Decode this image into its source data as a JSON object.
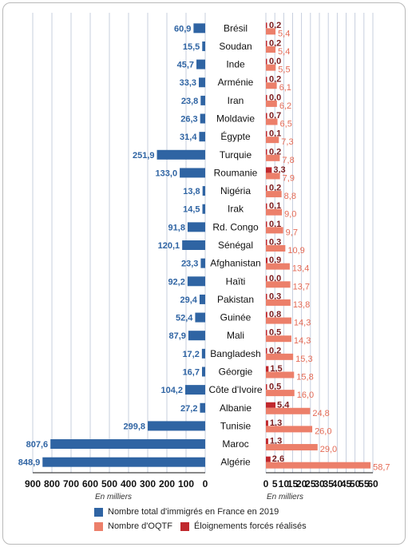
{
  "chart_data": {
    "type": "bar",
    "categories": [
      "Brésil",
      "Soudan",
      "Inde",
      "Arménie",
      "Iran",
      "Moldavie",
      "Égypte",
      "Turquie",
      "Roumanie",
      "Nigéria",
      "Irak",
      "Rd. Congo",
      "Sénégal",
      "Afghanistan",
      "Haïti",
      "Pakistan",
      "Guinée",
      "Mali",
      "Bangladesh",
      "Géorgie",
      "Côte d'Ivoire",
      "Albanie",
      "Tunisie",
      "Maroc",
      "Algérie"
    ],
    "left_panel": {
      "series": [
        {
          "name": "Nombre total d'immigrés en France en 2019",
          "color": "#2f64a3",
          "values": [
            60.9,
            15.5,
            45.7,
            33.3,
            23.8,
            26.3,
            31.4,
            251.9,
            133.0,
            13.8,
            14.5,
            91.8,
            120.1,
            23.3,
            92.2,
            29.4,
            52.4,
            87.9,
            17.2,
            16.7,
            104.2,
            27.2,
            299.8,
            807.6,
            848.9
          ],
          "labels": [
            "60,9",
            "15,5",
            "45,7",
            "33,3",
            "23,8",
            "26,3",
            "31,4",
            "251,9",
            "133,0",
            "13,8",
            "14,5",
            "91,8",
            "120,1",
            "23,3",
            "92,2",
            "29,4",
            "52,4",
            "87,9",
            "17,2",
            "16,7",
            "104,2",
            "27,2",
            "299,8",
            "807,6",
            "848,9"
          ]
        }
      ],
      "xlim": [
        0,
        900
      ],
      "ticks": [
        900,
        800,
        700,
        600,
        500,
        400,
        300,
        200,
        100,
        0
      ],
      "tick_labels": [
        "900",
        "800",
        "700",
        "600",
        "500",
        "400",
        "300",
        "200",
        "100",
        "0"
      ],
      "unit_label": "En milliers"
    },
    "right_panel": {
      "series": [
        {
          "name": "Éloignements forcés réalisés",
          "color": "#c0282d",
          "values": [
            0.2,
            0.2,
            0.0,
            0.2,
            0.0,
            0.7,
            0.1,
            0.2,
            3.3,
            0.2,
            0.1,
            0.1,
            0.3,
            0.9,
            0.0,
            0.3,
            0.8,
            0.5,
            0.2,
            1.5,
            0.5,
            5.4,
            1.3,
            1.3,
            2.6
          ],
          "labels": [
            "0,2",
            "0,2",
            "0,0",
            "0,2",
            "0,0",
            "0,7",
            "0,1",
            "0,2",
            "3,3",
            "0,2",
            "0,1",
            "0,1",
            "0,3",
            "0,9",
            "0,0",
            "0,3",
            "0,8",
            "0,5",
            "0,2",
            "1,5",
            "0,5",
            "5,4",
            "1,3",
            "1,3",
            "2,6"
          ]
        },
        {
          "name": "Nombre d'OQTF",
          "color": "#ec7f6a",
          "values": [
            5.4,
            5.4,
            5.5,
            6.1,
            6.2,
            6.5,
            7.3,
            7.8,
            7.9,
            8.8,
            9.0,
            9.7,
            10.9,
            13.4,
            13.7,
            13.8,
            14.3,
            14.3,
            15.3,
            15.8,
            16.0,
            24.8,
            26.0,
            29.0,
            58.7
          ],
          "labels": [
            "5,4",
            "5,4",
            "5,5",
            "6,1",
            "6,2",
            "6,5",
            "7,3",
            "7,8",
            "7,9",
            "8,8",
            "9,0",
            "9,7",
            "10,9",
            "13,4",
            "13,7",
            "13,8",
            "14,3",
            "14,3",
            "15,3",
            "15,8",
            "16,0",
            "24,8",
            "26,0",
            "29,0",
            "58,7"
          ]
        }
      ],
      "xlim": [
        0,
        60
      ],
      "ticks": [
        0,
        5,
        10,
        15,
        20,
        25,
        30,
        35,
        40,
        45,
        50,
        55,
        60
      ],
      "tick_labels": [
        "0",
        "5",
        "10",
        "15",
        "20",
        "25",
        "30",
        "35",
        "40",
        "45",
        "50",
        "55",
        "60"
      ],
      "unit_label": "En milliers"
    },
    "legend": [
      {
        "name": "Nombre total d'immigrés en France en 2019",
        "color": "#2f64a3"
      },
      {
        "name": "Nombre d'OQTF",
        "color": "#ec7f6a"
      },
      {
        "name": "Éloignements forcés réalisés",
        "color": "#c0282d"
      }
    ],
    "grid": true,
    "legend_position": "bottom"
  }
}
